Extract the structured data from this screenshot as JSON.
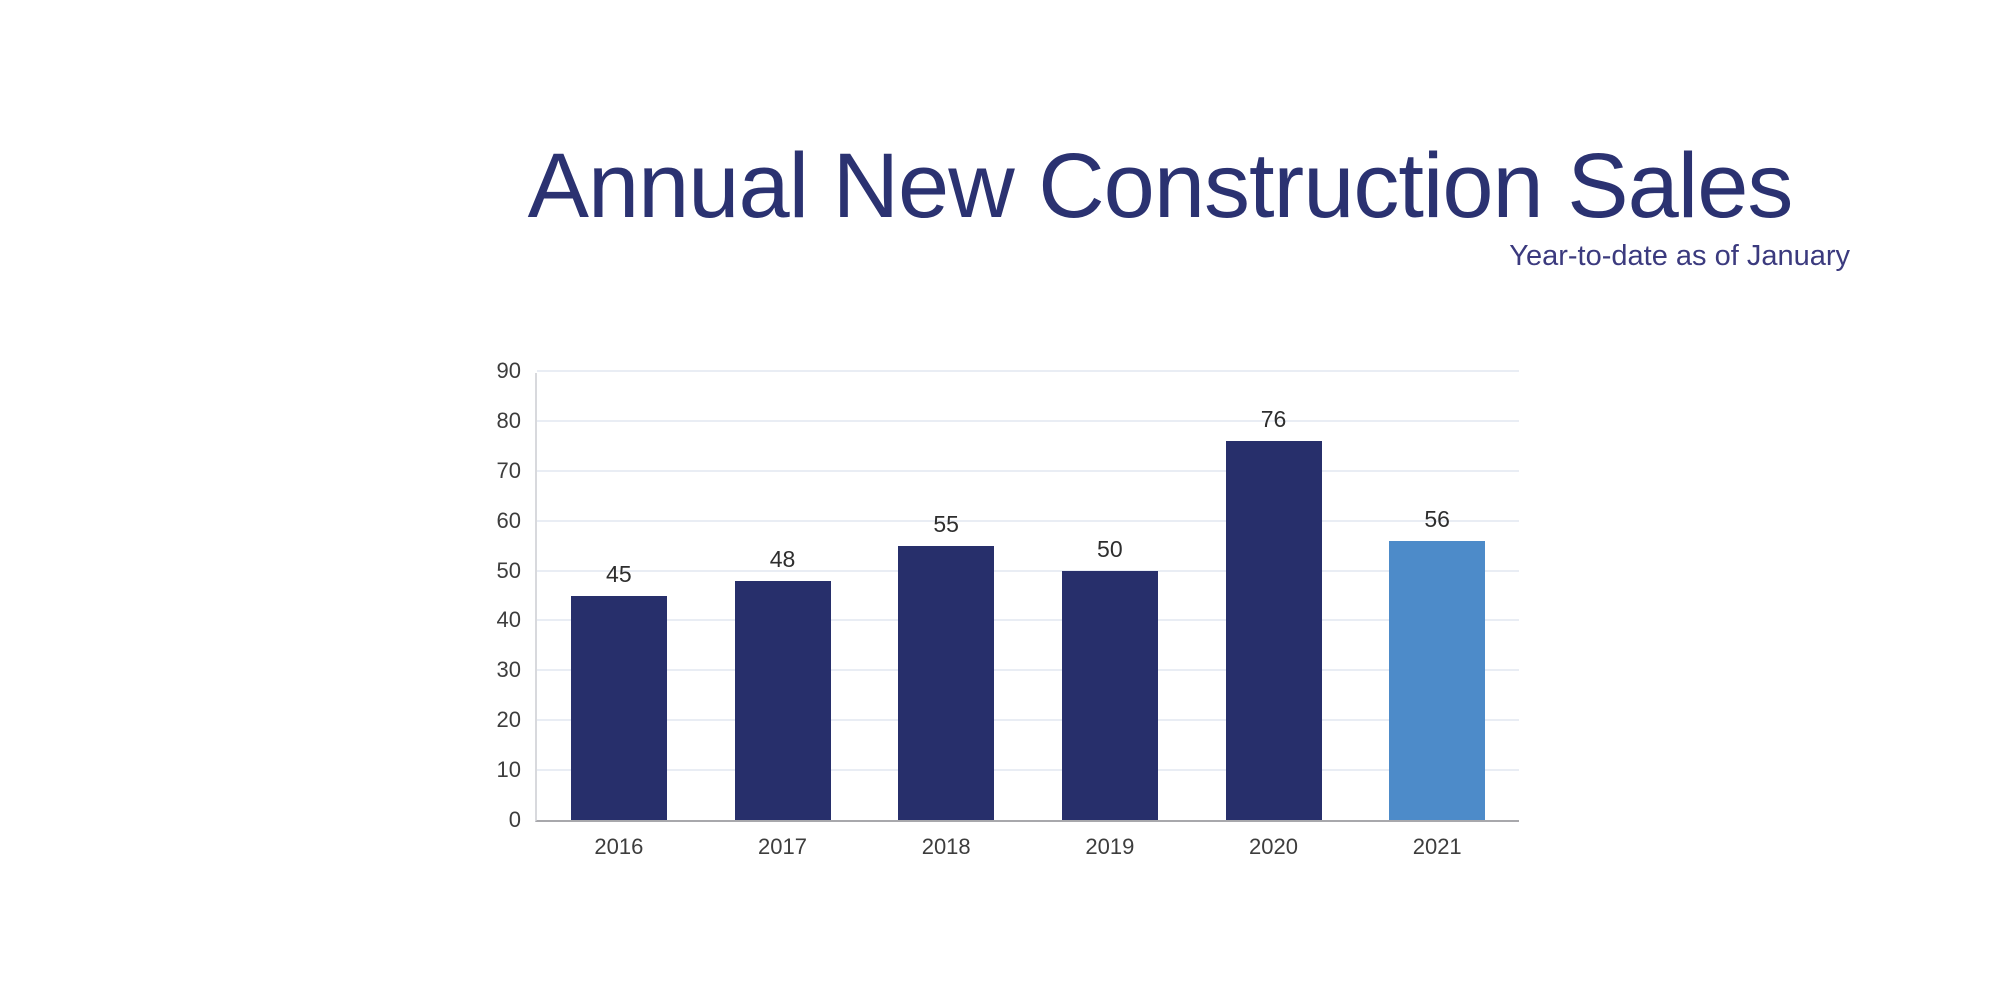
{
  "page": {
    "background": "#ffffff"
  },
  "chart_data": {
    "type": "bar",
    "title": "Annual New Construction Sales",
    "subtitle": "Year-to-date as of January",
    "categories": [
      "2016",
      "2017",
      "2018",
      "2019",
      "2020",
      "2021"
    ],
    "values": [
      45,
      48,
      55,
      50,
      76,
      56
    ],
    "ylim": [
      0,
      90
    ],
    "ytick_step": 10,
    "grid": true,
    "legend": "none",
    "value_labels_shown": true,
    "colors": {
      "bar": "#272f6b",
      "highlight_bar": "#4d8bc9",
      "title": "#2b3271",
      "subtitle": "#3b3a7e",
      "axis_text": "#3d3d3d",
      "value_label": "#2e2e2e",
      "gridline": "#e9edf4",
      "baseline": "#a8a8ac",
      "axisline": "#d8d9dd"
    },
    "highlight_index": 5
  }
}
